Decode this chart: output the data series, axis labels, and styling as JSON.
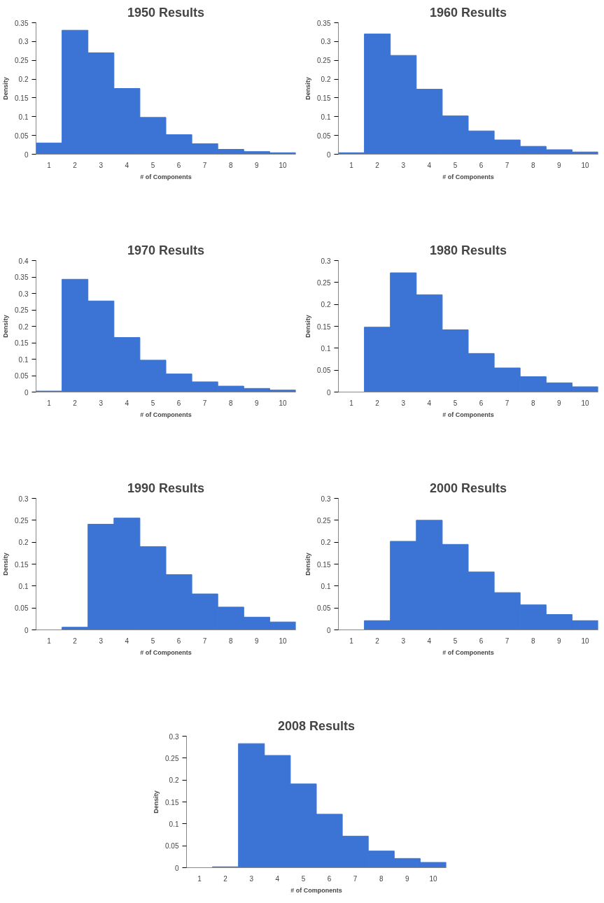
{
  "chart_data": [
    {
      "type": "bar",
      "title": "1950 Results",
      "xlabel": "# of Components",
      "ylabel": "Density",
      "categories": [
        "1",
        "2",
        "3",
        "4",
        "5",
        "6",
        "7",
        "8",
        "9",
        "10"
      ],
      "values": [
        0.03,
        0.33,
        0.27,
        0.175,
        0.098,
        0.052,
        0.028,
        0.013,
        0.007,
        0.004
      ],
      "color": "#3b74d4",
      "ylim": [
        0,
        0.35
      ],
      "yticks": [
        0,
        0.05,
        0.1,
        0.15,
        0.2,
        0.25,
        0.3,
        0.35
      ]
    },
    {
      "type": "bar",
      "title": "1960 Results",
      "xlabel": "# of Components",
      "ylabel": "Density",
      "categories": [
        "1",
        "2",
        "3",
        "4",
        "5",
        "6",
        "7",
        "8",
        "9",
        "10"
      ],
      "values": [
        0.004,
        0.32,
        0.263,
        0.173,
        0.102,
        0.062,
        0.038,
        0.021,
        0.012,
        0.006
      ],
      "color": "#3b74d4",
      "ylim": [
        0,
        0.35
      ],
      "yticks": [
        0,
        0.05,
        0.1,
        0.15,
        0.2,
        0.25,
        0.3,
        0.35
      ]
    },
    {
      "type": "bar",
      "title": "1970 Results",
      "xlabel": "# of Components",
      "ylabel": "Density",
      "categories": [
        "1",
        "2",
        "3",
        "4",
        "5",
        "6",
        "7",
        "8",
        "9",
        "10"
      ],
      "values": [
        0.003,
        0.343,
        0.277,
        0.166,
        0.097,
        0.055,
        0.031,
        0.018,
        0.011,
        0.006
      ],
      "color": "#3b74d4",
      "ylim": [
        0,
        0.4
      ],
      "yticks": [
        0,
        0.05,
        0.1,
        0.15,
        0.2,
        0.25,
        0.3,
        0.35,
        0.4
      ]
    },
    {
      "type": "bar",
      "title": "1980 Results",
      "xlabel": "# of Components",
      "ylabel": "Density",
      "categories": [
        "1",
        "2",
        "3",
        "4",
        "5",
        "6",
        "7",
        "8",
        "9",
        "10"
      ],
      "values": [
        0,
        0.148,
        0.272,
        0.222,
        0.142,
        0.088,
        0.055,
        0.035,
        0.021,
        0.012
      ],
      "color": "#3b74d4",
      "ylim": [
        0,
        0.3
      ],
      "yticks": [
        0,
        0.05,
        0.1,
        0.15,
        0.2,
        0.25,
        0.3
      ]
    },
    {
      "type": "bar",
      "title": "1990 Results",
      "xlabel": "# of Components",
      "ylabel": "Density",
      "categories": [
        "1",
        "2",
        "3",
        "4",
        "5",
        "6",
        "7",
        "8",
        "9",
        "10"
      ],
      "values": [
        0,
        0.006,
        0.241,
        0.255,
        0.19,
        0.126,
        0.082,
        0.052,
        0.029,
        0.018
      ],
      "color": "#3b74d4",
      "ylim": [
        0,
        0.3
      ],
      "yticks": [
        0,
        0.05,
        0.1,
        0.15,
        0.2,
        0.25,
        0.3
      ]
    },
    {
      "type": "bar",
      "title": "2000 Results",
      "xlabel": "# of Components",
      "ylabel": "Density",
      "categories": [
        "1",
        "2",
        "3",
        "4",
        "5",
        "6",
        "7",
        "8",
        "9",
        "10"
      ],
      "values": [
        0,
        0.021,
        0.202,
        0.25,
        0.195,
        0.132,
        0.085,
        0.057,
        0.035,
        0.021
      ],
      "color": "#3b74d4",
      "ylim": [
        0,
        0.3
      ],
      "yticks": [
        0,
        0.05,
        0.1,
        0.15,
        0.2,
        0.25,
        0.3
      ]
    },
    {
      "type": "bar",
      "title": "2008 Results",
      "xlabel": "# of Components",
      "ylabel": "Density",
      "categories": [
        "1",
        "2",
        "3",
        "4",
        "5",
        "6",
        "7",
        "8",
        "9",
        "10"
      ],
      "values": [
        0,
        0.002,
        0.283,
        0.256,
        0.191,
        0.122,
        0.072,
        0.038,
        0.021,
        0.012
      ],
      "color": "#3b74d4",
      "ylim": [
        0,
        0.3
      ],
      "yticks": [
        0,
        0.05,
        0.1,
        0.15,
        0.2,
        0.25,
        0.3
      ]
    }
  ]
}
